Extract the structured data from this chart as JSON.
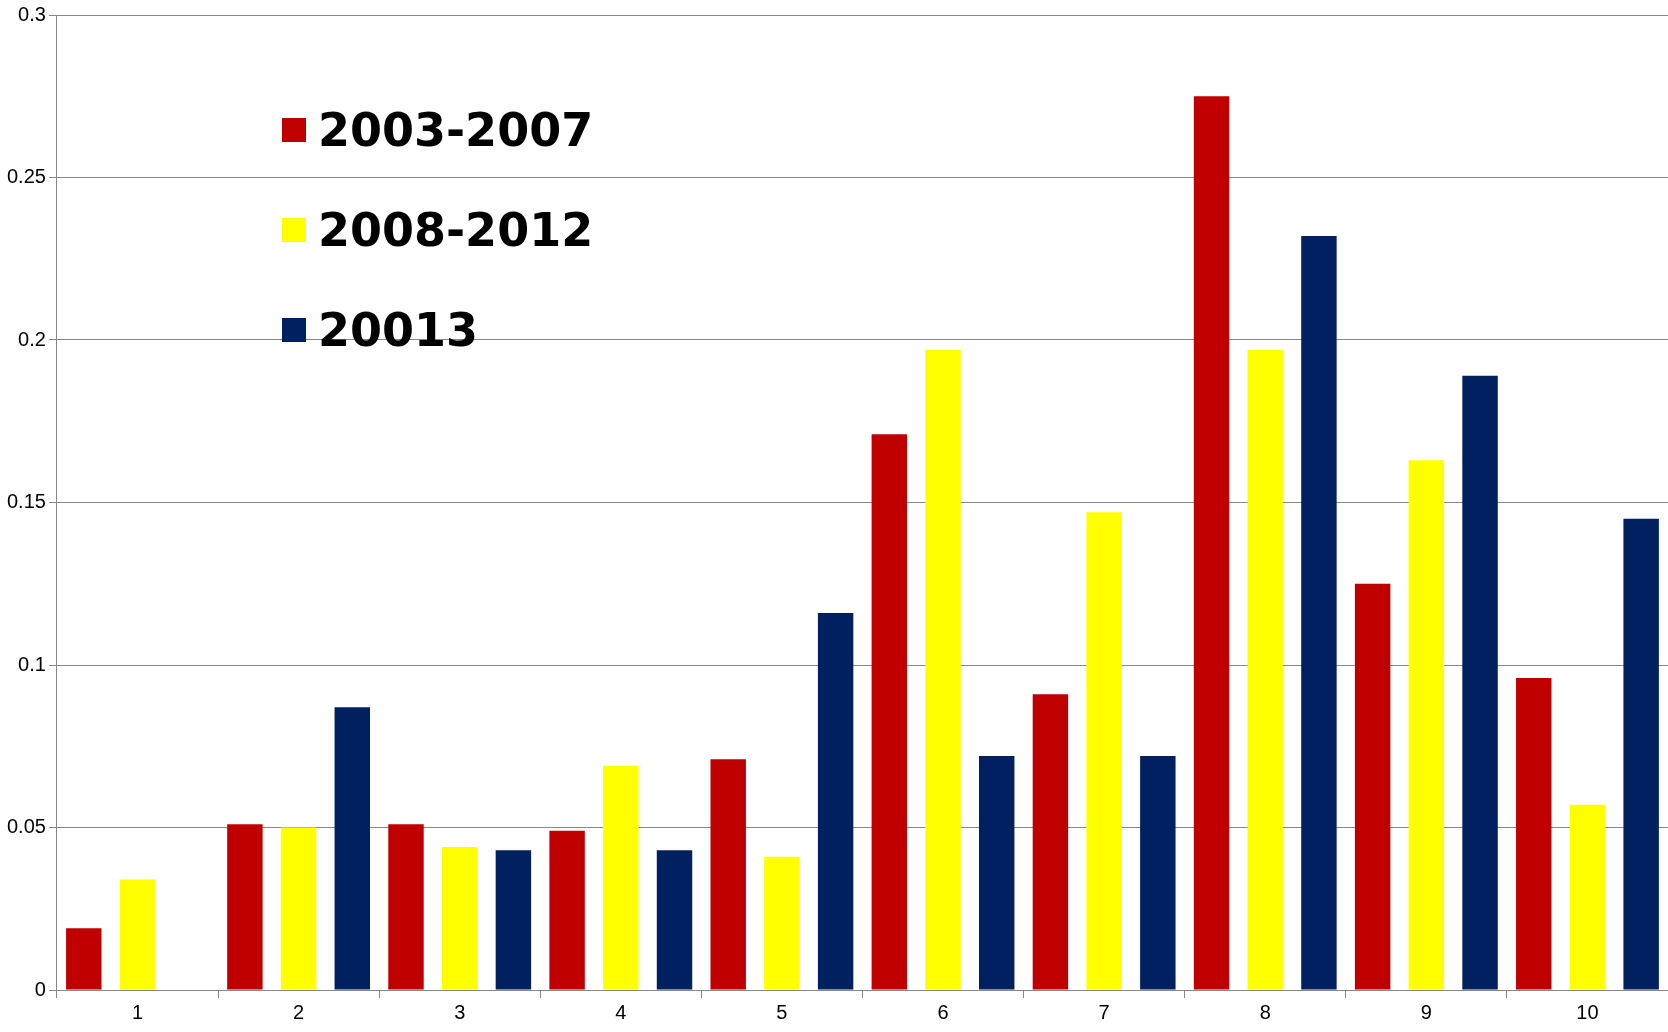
{
  "chart_data": {
    "type": "bar",
    "categories": [
      "1",
      "2",
      "3",
      "4",
      "5",
      "6",
      "7",
      "8",
      "9",
      "10"
    ],
    "series": [
      {
        "name": "2003-2007",
        "color": "#c00000",
        "values": [
          0.019,
          0.051,
          0.051,
          0.049,
          0.071,
          0.171,
          0.091,
          0.275,
          0.125,
          0.096
        ]
      },
      {
        "name": "2008-2012",
        "color": "#ffff00",
        "values": [
          0.034,
          0.05,
          0.044,
          0.069,
          0.041,
          0.197,
          0.147,
          0.197,
          0.163,
          0.057
        ]
      },
      {
        "name": "20013",
        "color": "#002060",
        "values": [
          0,
          0.087,
          0.043,
          0.043,
          0.116,
          0.072,
          0.072,
          0.232,
          0.189,
          0.145
        ]
      }
    ],
    "ylim": [
      0,
      0.3
    ],
    "yticks": [
      0,
      0.05,
      0.1,
      0.15,
      0.2,
      0.25,
      0.3
    ],
    "grid": "y",
    "legend": "top left"
  }
}
